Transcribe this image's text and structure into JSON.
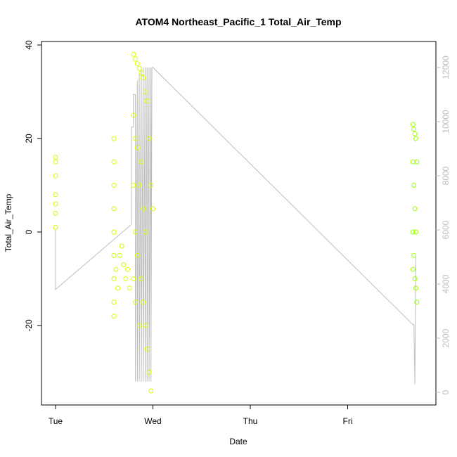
{
  "chart_data": {
    "type": "scatter",
    "title": "ATOM4 Northeast_Pacific_1 Total_Air_Temp",
    "xlabel": "Date",
    "ylabel": "Total_Air_Temp",
    "x_ticks": [
      "Tue",
      "Wed",
      "Thu",
      "Fri"
    ],
    "x_range_days": [
      0,
      3.8
    ],
    "ylim": [
      -35,
      40
    ],
    "y_ticks": [
      -20,
      0,
      20,
      40
    ],
    "y2lim": [
      0,
      12500
    ],
    "y2_ticks": [
      0,
      2000,
      4000,
      6000,
      8000,
      10000,
      12000
    ],
    "grid": false,
    "legend": "none",
    "colors": {
      "points_early": "#ccff00",
      "points_mid": "#ddff00",
      "points_late": "#99ff00",
      "secondary_line": "#bdbdbd",
      "axis": "#000000",
      "right_axis": "#bdbdbd"
    },
    "series": [
      {
        "kind": "points",
        "x": [
          0.0,
          0.0,
          0.0,
          0.0,
          0.0,
          0.0,
          0.0,
          0.6,
          0.6,
          0.6,
          0.6,
          0.6,
          0.6,
          0.6,
          0.6,
          0.6,
          0.62,
          0.64,
          0.66,
          0.68,
          0.7,
          0.72,
          0.74,
          0.76,
          0.8,
          0.8,
          0.8,
          0.8,
          0.82,
          0.82,
          0.82,
          0.82,
          0.84,
          0.84,
          0.84,
          0.86,
          0.86,
          0.86,
          0.88,
          0.88,
          0.88,
          0.9,
          0.9,
          0.9,
          0.92,
          0.92,
          0.92,
          0.94,
          0.94,
          0.96,
          0.96,
          0.98,
          0.98,
          1.0,
          3.67,
          3.67,
          3.67,
          3.67,
          3.68,
          3.68,
          3.68,
          3.69,
          3.69,
          3.69,
          3.7,
          3.7,
          3.7,
          3.71,
          3.71
        ],
        "y": [
          16,
          12,
          8,
          4,
          1,
          15,
          6,
          20,
          15,
          10,
          5,
          0,
          -5,
          -10,
          -15,
          -18,
          -8,
          -12,
          -5,
          -3,
          -7,
          -10,
          -8,
          -12,
          38,
          25,
          10,
          -10,
          37,
          20,
          0,
          -15,
          36,
          18,
          -5,
          35,
          10,
          -20,
          34,
          15,
          -10,
          33,
          5,
          -15,
          30,
          0,
          -20,
          28,
          -25,
          20,
          -30,
          10,
          -34,
          5,
          23,
          15,
          0,
          -8,
          22,
          10,
          -5,
          21,
          5,
          -10,
          20,
          0,
          -12,
          15,
          -15
        ]
      },
      {
        "kind": "line",
        "axis": "right",
        "x": [
          0.0,
          0.0,
          0.78,
          0.78,
          0.8,
          0.8,
          0.82,
          0.82,
          0.84,
          0.84,
          0.86,
          0.86,
          0.88,
          0.88,
          0.9,
          0.9,
          0.92,
          0.92,
          0.94,
          0.94,
          0.96,
          0.96,
          0.98,
          0.98,
          0.99,
          0.99,
          1.0,
          3.67,
          3.68,
          3.69,
          3.7
        ],
        "y": [
          6000,
          3800,
          6200,
          9800,
          9800,
          11000,
          11000,
          400,
          11500,
          400,
          11800,
          400,
          12000,
          400,
          12000,
          400,
          12000,
          400,
          12000,
          400,
          12000,
          400,
          12000,
          400,
          12000,
          12000,
          12000,
          2500,
          2500,
          300,
          5000
        ]
      }
    ]
  }
}
